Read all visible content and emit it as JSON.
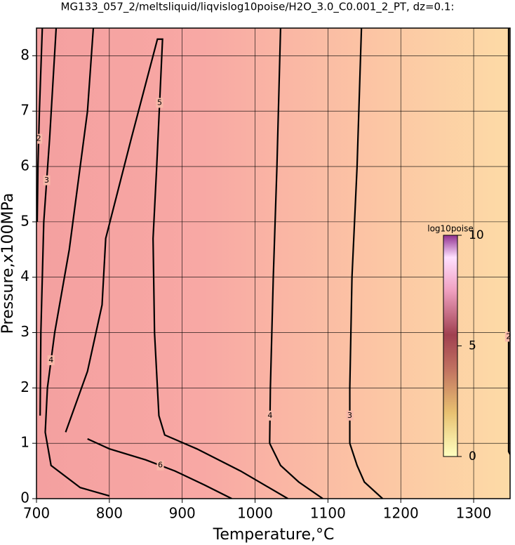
{
  "chart_data": {
    "type": "contour",
    "title": "MG133_057_2/meltsliquid/liqvislog10poise/H2O_3.0_C0.001_2_PT, dz=0.1:",
    "x_label": "Temperature,°C",
    "y_label": "Pressure,x100MPa",
    "xlim": [
      700,
      1350
    ],
    "ylim": [
      0,
      8.5
    ],
    "xticks": [
      700,
      800,
      900,
      1000,
      1100,
      1200,
      1300
    ],
    "yticks": [
      0,
      1,
      2,
      3,
      4,
      5,
      6,
      7,
      8
    ],
    "grid": true,
    "contours": [
      {
        "level": 2,
        "x": [
          1348,
          1348,
          1348,
          1350
        ],
        "y": [
          8.5,
          5,
          0.85,
          0.8
        ]
      },
      {
        "level": 3,
        "x": [
          1146,
          1140,
          1133,
          1130,
          1130,
          1140,
          1150,
          1175
        ],
        "y": [
          8.5,
          6,
          4,
          2,
          1.0,
          0.6,
          0.3,
          0
        ]
      },
      {
        "level": 4,
        "x": [
          1035,
          1030,
          1025,
          1021,
          1020,
          1035,
          1060,
          1093
        ],
        "y": [
          8.5,
          6,
          4,
          2,
          1.0,
          0.6,
          0.3,
          0
        ]
      },
      {
        "level": 5,
        "x": [
          740,
          770,
          790,
          795,
          830,
          866,
          873,
          865,
          860,
          862,
          868,
          876,
          920,
          980,
          1045
        ],
        "y": [
          1.2,
          2.3,
          3.5,
          4.7,
          6.5,
          8.3,
          8.3,
          6,
          4.7,
          3,
          1.5,
          1.15,
          0.9,
          0.5,
          0
        ]
      },
      {
        "level": 4,
        "x": [
          778,
          770,
          745,
          725,
          715,
          712,
          720,
          760,
          800
        ],
        "y": [
          8.5,
          7,
          4.5,
          3,
          2,
          1.2,
          0.6,
          0.2,
          0.05
        ]
      },
      {
        "level": 6,
        "x": [
          770,
          800,
          850,
          890,
          930,
          968
        ],
        "y": [
          1.08,
          0.9,
          0.7,
          0.5,
          0.25,
          0
        ]
      },
      {
        "level": 3,
        "x": [
          727,
          718,
          710,
          706,
          705
        ],
        "y": [
          8.5,
          6.5,
          5,
          3,
          1.5
        ]
      },
      {
        "level": 2,
        "x": [
          708,
          704,
          702,
          701
        ],
        "y": [
          8.5,
          7,
          6,
          5
        ]
      }
    ],
    "colorbar": {
      "label": "log10poise",
      "lim": [
        0,
        10
      ],
      "ticks": [
        0,
        5,
        10
      ]
    }
  }
}
